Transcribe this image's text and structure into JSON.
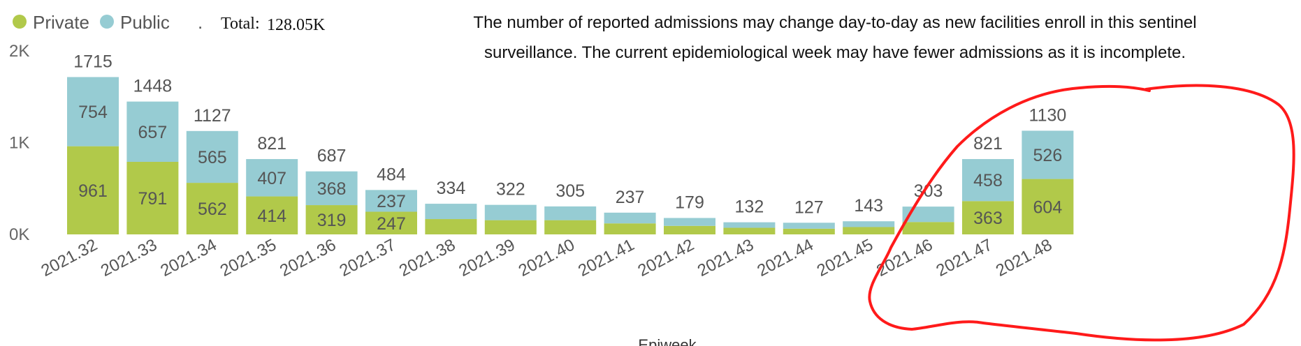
{
  "legend": {
    "items": [
      {
        "label": "Private",
        "color": "#b1c94a"
      },
      {
        "label": "Public",
        "color": "#96ccd3"
      }
    ],
    "separator": ".",
    "total_label": "Total:",
    "total_value": "128.05K"
  },
  "note": {
    "line1": "The number of reported admissions may change day-to-day as new facilities enroll in this sentinel",
    "line2": "surveillance. The current epidemiological week may have fewer admissions as it is incomplete."
  },
  "annotation": {
    "shape": "hand-drawn circle",
    "color": "#ff1a1a",
    "highlights": [
      "2021.45",
      "2021.46",
      "2021.47",
      "2021.48"
    ]
  },
  "chart_data": {
    "type": "bar",
    "stacked": true,
    "categories": [
      "2021.32",
      "2021.33",
      "2021.34",
      "2021.35",
      "2021.36",
      "2021.37",
      "2021.38",
      "2021.39",
      "2021.40",
      "2021.41",
      "2021.42",
      "2021.43",
      "2021.44",
      "2021.45",
      "2021.46",
      "2021.47",
      "2021.48"
    ],
    "series": [
      {
        "name": "Private",
        "color": "#b1c94a",
        "values": [
          961,
          791,
          562,
          414,
          319,
          247,
          167,
          155,
          155,
          120,
          93,
          72,
          62,
          80,
          135,
          363,
          604
        ]
      },
      {
        "name": "Public",
        "color": "#96ccd3",
        "values": [
          754,
          657,
          565,
          407,
          368,
          237,
          167,
          167,
          150,
          117,
          86,
          60,
          65,
          63,
          168,
          458,
          526
        ]
      }
    ],
    "series_labels_shown": [
      [
        961,
        791,
        562,
        414,
        319,
        247,
        null,
        null,
        null,
        null,
        null,
        null,
        null,
        null,
        null,
        363,
        604
      ],
      [
        754,
        657,
        565,
        407,
        368,
        237,
        null,
        null,
        null,
        null,
        null,
        null,
        null,
        null,
        null,
        458,
        526
      ]
    ],
    "totals": [
      1715,
      1448,
      1127,
      821,
      687,
      484,
      334,
      322,
      305,
      237,
      179,
      132,
      127,
      143,
      303,
      821,
      1130
    ],
    "y_ticks": [
      {
        "value": 0,
        "label": "0K"
      },
      {
        "value": 1000,
        "label": "1K"
      },
      {
        "value": 2000,
        "label": "2K"
      }
    ],
    "ylim": [
      0,
      2000
    ],
    "xlabel": "Epiweek",
    "ylabel": "",
    "grid": false,
    "legend_position": "top-left"
  }
}
